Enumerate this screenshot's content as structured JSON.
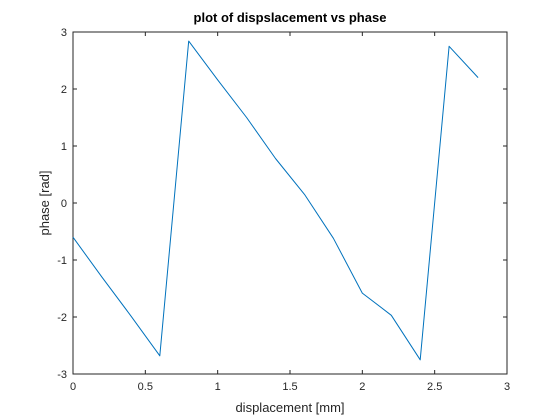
{
  "chart_data": {
    "type": "line",
    "title": "plot of dispslacement vs phase",
    "xlabel": "displacement [mm]",
    "ylabel": "phase [rad]",
    "xlim": [
      0,
      3
    ],
    "ylim": [
      -3,
      3
    ],
    "xticks": [
      0,
      0.5,
      1,
      1.5,
      2,
      2.5,
      3
    ],
    "xtick_labels": [
      "0",
      "0.5",
      "1",
      "1.5",
      "2",
      "2.5",
      "3"
    ],
    "yticks": [
      -3,
      -2,
      -1,
      0,
      1,
      2,
      3
    ],
    "ytick_labels": [
      "-3",
      "-2",
      "-1",
      "0",
      "1",
      "2",
      "3"
    ],
    "grid": false,
    "box": true,
    "series": [
      {
        "color": "#0072BD",
        "x": [
          0,
          0.2,
          0.4,
          0.6,
          0.8,
          1.0,
          1.2,
          1.4,
          1.6,
          1.8,
          2.0,
          2.2,
          2.4,
          2.6,
          2.8
        ],
        "y": [
          -0.6,
          -1.3,
          -1.98,
          -2.68,
          2.84,
          2.16,
          1.5,
          0.78,
          0.15,
          -0.62,
          -1.58,
          -1.97,
          -2.75,
          2.75,
          2.2
        ]
      }
    ]
  }
}
